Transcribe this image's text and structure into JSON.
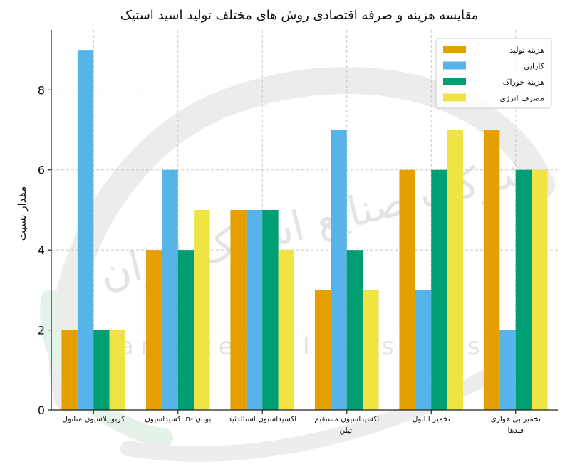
{
  "chart_data": {
    "type": "bar",
    "title": "مقایسه هزینه و صرفه اقتصادی روش های مختلف تولید اسید استیک",
    "xlabel": "",
    "ylabel": "مقدار نسبت",
    "ylim": [
      0,
      9.5
    ],
    "yticks": [
      0,
      2,
      4,
      6,
      8
    ],
    "grid": true,
    "legend_position": "top-right",
    "categories": [
      [
        "کربونیلاسیون متانول"
      ],
      [
        "اکسیداسیون n- بوتان"
      ],
      [
        "اکسیداسیون استالدئید"
      ],
      [
        "اکسیداسیون مستقیم",
        "اتیلن"
      ],
      [
        "تخمیر اتانول"
      ],
      [
        "تخمیر بی هوازی",
        "قندها"
      ]
    ],
    "series": [
      {
        "name": "هزینه تولید",
        "color": "#E69F00",
        "values": [
          2,
          4,
          5,
          3,
          6,
          7
        ]
      },
      {
        "name": "کارایی",
        "color": "#56B4E9",
        "values": [
          9,
          6,
          5,
          7,
          3,
          2
        ]
      },
      {
        "name": "هزینه خوراک",
        "color": "#009E73",
        "values": [
          2,
          4,
          5,
          4,
          6,
          6
        ]
      },
      {
        "name": "مصرف انرژی",
        "color": "#F0E442",
        "values": [
          2,
          5,
          4,
          3,
          7,
          6
        ]
      }
    ]
  },
  "watermark": {
    "text_en": "Iran Acetic Industries Co",
    "text_fa": "شرکت صنایع استیک ایران"
  }
}
